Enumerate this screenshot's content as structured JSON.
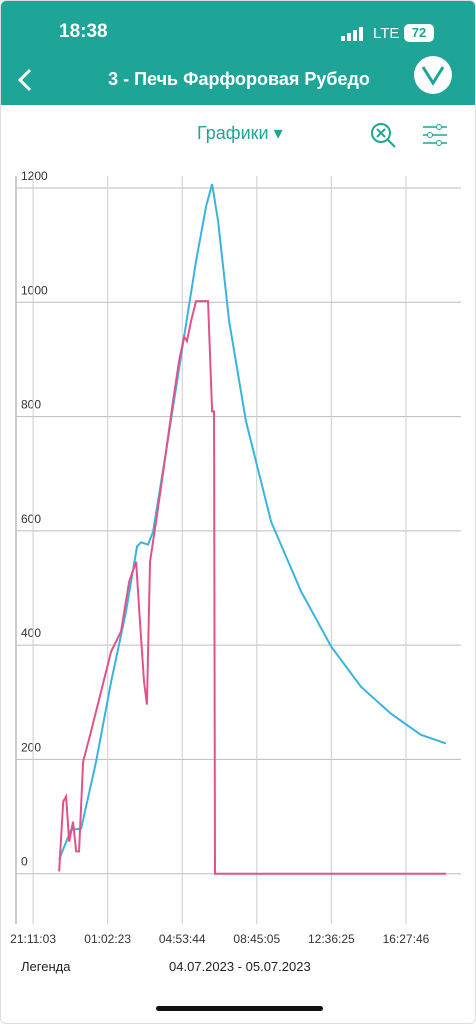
{
  "status_bar": {
    "time": "18:38",
    "network": "LTE",
    "battery": "72"
  },
  "header": {
    "title": "3 - Печь Фарфоровая Рубедо"
  },
  "toolbar": {
    "view": "Графики"
  },
  "footer": {
    "legend": "Легенда",
    "date_range": "04.07.2023 - 05.07.2023"
  },
  "chart_data": {
    "type": "line",
    "xlim": [
      20.3,
      43.31
    ],
    "ylim": [
      -88,
      1221
    ],
    "xticks": [
      {
        "value": 21.184,
        "label": "21:11:03"
      },
      {
        "value": 25.04,
        "label": "01:02:23"
      },
      {
        "value": 28.896,
        "label": "04:53:44"
      },
      {
        "value": 32.751,
        "label": "08:45:05"
      },
      {
        "value": 36.607,
        "label": "12:36:25"
      },
      {
        "value": 40.463,
        "label": "16:27:46"
      }
    ],
    "yticks": [
      0,
      200,
      400,
      600,
      800,
      1000,
      1200
    ],
    "grid": true,
    "series": [
      {
        "color": "#3ab4dc",
        "x": [
          22.53,
          23.15,
          23.67,
          24.44,
          25.22,
          25.99,
          26.56,
          26.77,
          27.13,
          27.39,
          28.06,
          28.83,
          29.61,
          30.13,
          30.44,
          30.75,
          31.32,
          32.19,
          33.49,
          35.04,
          36.59,
          38.14,
          39.69,
          41.24,
          42.53
        ],
        "values": [
          25,
          77,
          79,
          196,
          336,
          459,
          573,
          580,
          576,
          599,
          739,
          905,
          1072,
          1168,
          1207,
          1142,
          967,
          792,
          616,
          494,
          398,
          327,
          280,
          243,
          228
        ]
      },
      {
        "color": "#e0538a",
        "x": [
          22.53,
          22.74,
          22.89,
          23.05,
          23.25,
          23.41,
          23.56,
          23.77,
          24.18,
          24.7,
          25.22,
          25.73,
          26.15,
          26.51,
          26.71,
          26.92,
          27.07,
          27.23,
          27.54,
          28.06,
          28.42,
          28.73,
          28.99,
          29.14,
          29.35,
          29.61,
          30.23,
          30.44,
          30.54,
          30.59,
          42.53
        ],
        "values": [
          4,
          126,
          135,
          56,
          91,
          39,
          39,
          196,
          249,
          319,
          389,
          424,
          511,
          546,
          441,
          336,
          296,
          546,
          616,
          739,
          827,
          897,
          940,
          932,
          967,
          1002,
          1002,
          809,
          809,
          0,
          0
        ]
      }
    ]
  }
}
